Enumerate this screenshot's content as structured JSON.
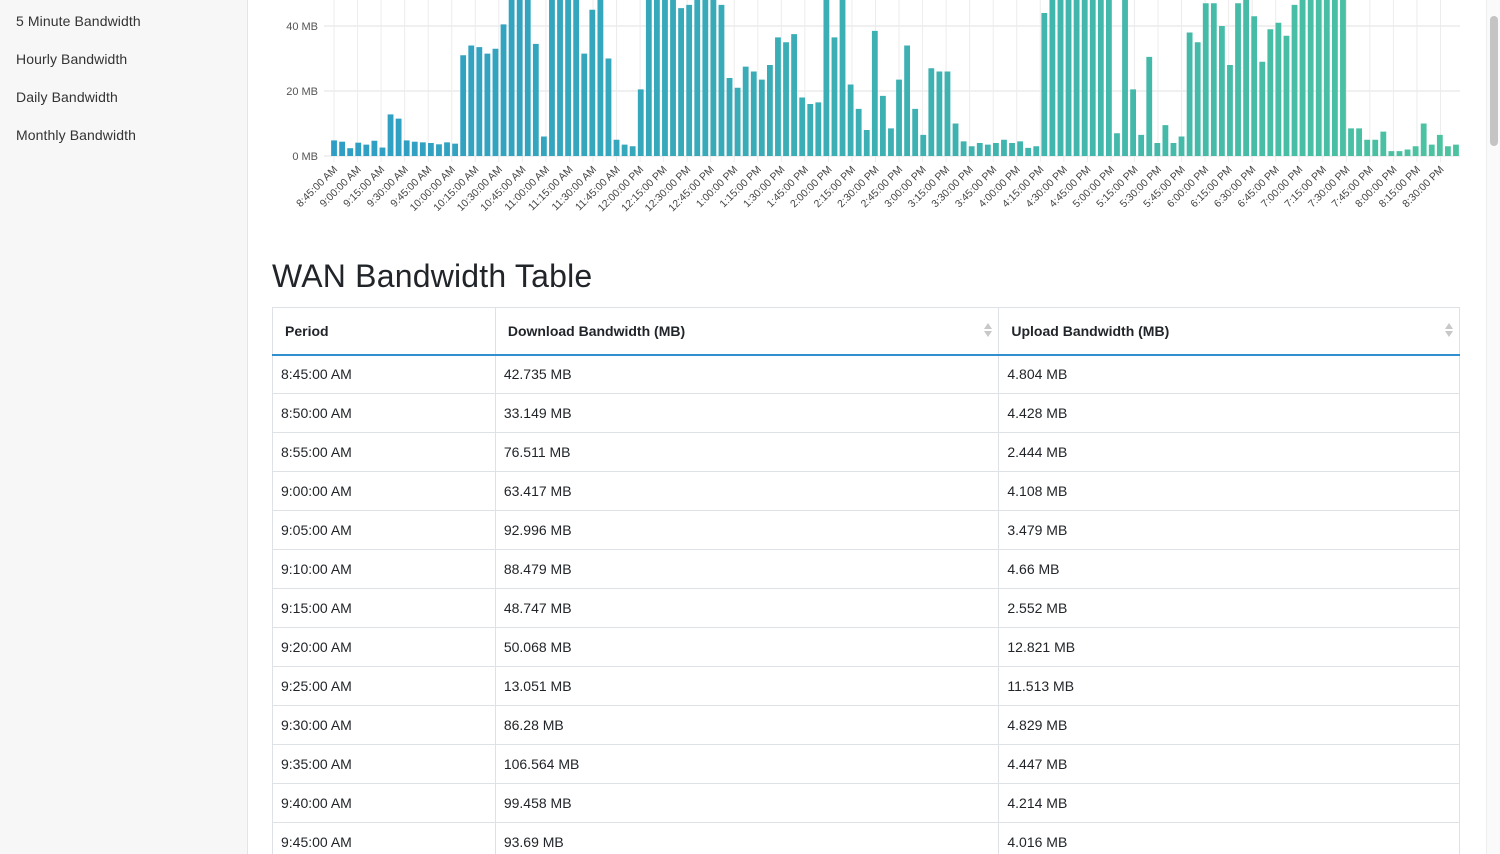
{
  "sidebar": {
    "items": [
      {
        "label": "5 Minute Bandwidth"
      },
      {
        "label": "Hourly Bandwidth"
      },
      {
        "label": "Daily Bandwidth"
      },
      {
        "label": "Monthly Bandwidth"
      }
    ]
  },
  "chart_data": {
    "type": "bar",
    "y_ticks": [
      "0 MB",
      "20 MB",
      "40 MB"
    ],
    "ylim": [
      0,
      48
    ],
    "x_tick_labels": [
      "8:45:00 AM",
      "9:00:00 AM",
      "9:15:00 AM",
      "9:30:00 AM",
      "9:45:00 AM",
      "10:00:00 AM",
      "10:15:00 AM",
      "10:30:00 AM",
      "10:45:00 AM",
      "11:00:00 AM",
      "11:15:00 AM",
      "11:30:00 AM",
      "11:45:00 AM",
      "12:00:00 PM",
      "12:15:00 PM",
      "12:30:00 PM",
      "12:45:00 PM",
      "1:00:00 PM",
      "1:15:00 PM",
      "1:30:00 PM",
      "1:45:00 PM",
      "2:00:00 PM",
      "2:15:00 PM",
      "2:30:00 PM",
      "2:45:00 PM",
      "3:00:00 PM",
      "3:15:00 PM",
      "3:30:00 PM",
      "3:45:00 PM",
      "4:00:00 PM",
      "4:15:00 PM",
      "4:30:00 PM",
      "4:45:00 PM",
      "5:00:00 PM",
      "5:15:00 PM",
      "5:30:00 PM",
      "5:45:00 PM",
      "6:00:00 PM",
      "6:15:00 PM",
      "6:30:00 PM",
      "6:45:00 PM",
      "7:00:00 PM",
      "7:15:00 PM",
      "7:30:00 PM",
      "7:45:00 PM",
      "8:00:00 PM",
      "8:15:00 PM",
      "8:30:00 PM"
    ],
    "values": [
      4.8,
      4.4,
      2.4,
      4.1,
      3.5,
      4.7,
      2.6,
      12.8,
      11.5,
      4.8,
      4.4,
      4.2,
      4.0,
      3.6,
      4.2,
      3.8,
      31,
      34,
      33.5,
      31.5,
      33,
      40.5,
      48,
      48,
      48,
      34.5,
      6,
      48,
      48,
      48,
      48,
      31.5,
      45,
      48,
      30,
      5,
      3.5,
      3,
      20.5,
      48,
      48,
      48,
      48,
      45.5,
      46.5,
      48,
      48,
      48,
      46.5,
      24,
      21,
      27.5,
      26,
      23.5,
      28,
      36.5,
      35,
      37.5,
      18,
      16,
      16.5,
      48,
      36.5,
      48,
      22,
      14.5,
      8,
      38.5,
      18.5,
      8.5,
      23.5,
      34,
      14.5,
      6.5,
      27,
      26,
      26,
      10,
      4.5,
      3,
      4,
      3.5,
      4,
      5,
      4,
      4.5,
      2.5,
      3,
      44,
      48,
      48,
      48,
      48,
      48,
      48,
      48,
      48,
      7,
      48,
      20.5,
      6.5,
      30.5,
      4,
      9.5,
      4,
      6,
      38,
      35,
      47,
      47,
      40,
      28,
      47,
      48,
      43,
      29,
      39,
      41,
      37,
      46.5,
      48,
      48,
      48,
      48,
      48,
      48,
      8.5,
      8.5,
      5,
      5,
      7.5,
      1.5,
      1.5,
      2,
      3,
      10,
      3.5,
      6.5,
      3,
      3.5
    ],
    "color_start": "#2e9ec5",
    "color_end": "#4cc3a0"
  },
  "table": {
    "title": "WAN Bandwidth Table",
    "columns": [
      "Period",
      "Download Bandwidth (MB)",
      "Upload Bandwidth (MB)"
    ],
    "rows": [
      [
        "8:45:00 AM",
        "42.735 MB",
        "4.804 MB"
      ],
      [
        "8:50:00 AM",
        "33.149 MB",
        "4.428 MB"
      ],
      [
        "8:55:00 AM",
        "76.511 MB",
        "2.444 MB"
      ],
      [
        "9:00:00 AM",
        "63.417 MB",
        "4.108 MB"
      ],
      [
        "9:05:00 AM",
        "92.996 MB",
        "3.479 MB"
      ],
      [
        "9:10:00 AM",
        "88.479 MB",
        "4.66 MB"
      ],
      [
        "9:15:00 AM",
        "48.747 MB",
        "2.552 MB"
      ],
      [
        "9:20:00 AM",
        "50.068 MB",
        "12.821 MB"
      ],
      [
        "9:25:00 AM",
        "13.051 MB",
        "11.513 MB"
      ],
      [
        "9:30:00 AM",
        "86.28 MB",
        "4.829 MB"
      ],
      [
        "9:35:00 AM",
        "106.564 MB",
        "4.447 MB"
      ],
      [
        "9:40:00 AM",
        "99.458 MB",
        "4.214 MB"
      ],
      [
        "9:45:00 AM",
        "93.69 MB",
        "4.016 MB"
      ]
    ]
  }
}
